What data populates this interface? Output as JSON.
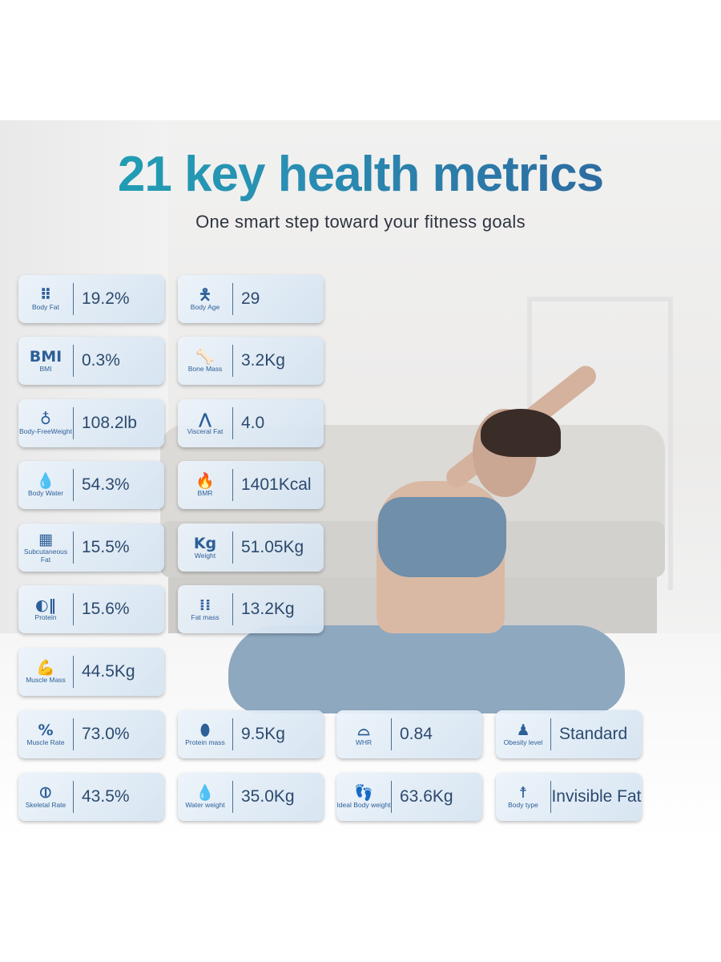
{
  "header": {
    "title": "21 key health metrics",
    "subtitle": "One smart step toward your fitness goals"
  },
  "colors": {
    "title_start": "#19a7b3",
    "title_end": "#2e5e9a",
    "icon": "#2d5f98",
    "value_text": "#2c4a6e"
  },
  "metrics": [
    {
      "label": "Body Fat",
      "value": "19.2%",
      "icon": "dots-grid-icon"
    },
    {
      "label": "Body Age",
      "value": "29",
      "icon": "person-icon"
    },
    {
      "label": "BMI",
      "value": "0.3%",
      "icon": "bmi-text-icon",
      "icon_text": "BMI"
    },
    {
      "label": "Bone Mass",
      "value": "3.2Kg",
      "icon": "bone-icon"
    },
    {
      "label": "Body-FreeWeight",
      "value": "108.2lb",
      "icon": "person-on-scale-icon"
    },
    {
      "label": "Visceral Fat",
      "value": "4.0",
      "icon": "lungs-icon"
    },
    {
      "label": "Body Water",
      "value": "54.3%",
      "icon": "water-drop-icon"
    },
    {
      "label": "BMR",
      "value": "1401Kcal",
      "icon": "flame-icon"
    },
    {
      "label": "Subcutaneous Fat",
      "value": "15.5%",
      "icon": "fat-layer-icon"
    },
    {
      "label": "Weight",
      "value": "51.05Kg",
      "icon": "kettlebell-weight-icon",
      "icon_text": "Kg"
    },
    {
      "label": "Protein",
      "value": "15.6%",
      "icon": "protein-icon"
    },
    {
      "label": "Fat mass",
      "value": "13.2Kg",
      "icon": "fat-mass-icon"
    },
    {
      "label": "Muscle Mass",
      "value": "44.5Kg",
      "icon": "muscle-arm-icon"
    },
    {
      "label": "Muscle Rate",
      "value": "73.0%",
      "icon": "muscle-percent-icon"
    },
    {
      "label": "Protein mass",
      "value": "9.5Kg",
      "icon": "egg-icon"
    },
    {
      "label": "WHR",
      "value": "0.84",
      "icon": "waist-icon"
    },
    {
      "label": "Obesity level",
      "value": "Standard",
      "icon": "obese-person-icon"
    },
    {
      "label": "Skeletal Rate",
      "value": "43.5%",
      "icon": "bone-joint-icon"
    },
    {
      "label": "Water weight",
      "value": "35.0Kg",
      "icon": "water-drop-icon"
    },
    {
      "label": "Ideal Body weight",
      "value": "63.6Kg",
      "icon": "footprints-icon"
    },
    {
      "label": "Body type",
      "value": "Invisible Fat",
      "icon": "body-type-icon"
    }
  ]
}
